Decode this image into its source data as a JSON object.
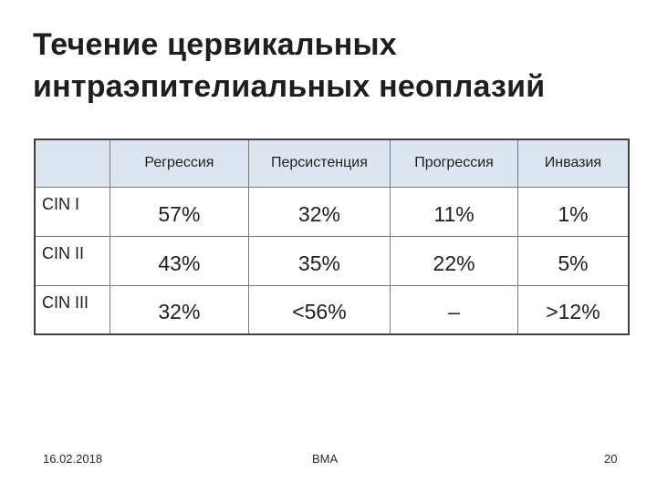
{
  "slide": {
    "title_line1": "Течение цервикальных",
    "title_line2": "интраэпителиальных неоплазий"
  },
  "table": {
    "headers": [
      "",
      "Регрессия",
      "Персистенция",
      "Прогрессия",
      "Инвазия"
    ],
    "rows": [
      {
        "label": "CIN I",
        "values": [
          "57%",
          "32%",
          "11%",
          "1%"
        ]
      },
      {
        "label": "CIN II",
        "values": [
          "43%",
          "35%",
          "22%",
          "5%"
        ]
      },
      {
        "label": "CIN III",
        "values": [
          "32%",
          "<56%",
          "–",
          ">12%"
        ]
      }
    ]
  },
  "footer": {
    "date": "16.02.2018",
    "center": "ВМА",
    "page_number": "20"
  },
  "colors": {
    "header_background": "#dde6f0",
    "text": "#1e1e1e"
  }
}
